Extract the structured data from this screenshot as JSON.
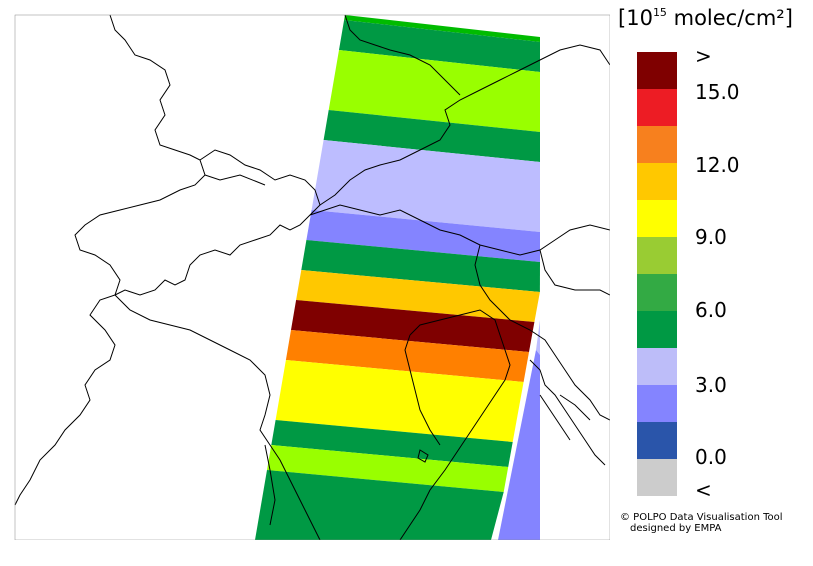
{
  "legend": {
    "unit_base": "10",
    "unit_exp": "15",
    "unit_rest": "molec/cm²",
    "bracket_open": "[",
    "bracket_close": "]",
    "labels": [
      ">",
      "15.0",
      "12.0",
      "9.0",
      "6.0",
      "3.0",
      "0.0",
      "<"
    ],
    "colors": [
      "#7f0000",
      "#ed1c24",
      "#f7801e",
      "#ffc800",
      "#ffff00",
      "#99cc33",
      "#33aa44",
      "#009944",
      "#bdbdf9",
      "#8484ff",
      "#2a55aa",
      "#cccccc"
    ]
  },
  "credit": {
    "line1": "© POLPO Data Visualisation Tool",
    "line2": "designed by EMPA"
  },
  "swath_colors": {
    "dark_green": "#009944",
    "green": "#00bb00",
    "yellow_green": "#99ff00",
    "lavender": "#bdbdff",
    "blue_violet": "#8484ff",
    "orange_yellow": "#ffc800",
    "dark_red": "#7f0000",
    "orange": "#ff8000",
    "yellow": "#ffff00",
    "border_line": "#000000"
  }
}
